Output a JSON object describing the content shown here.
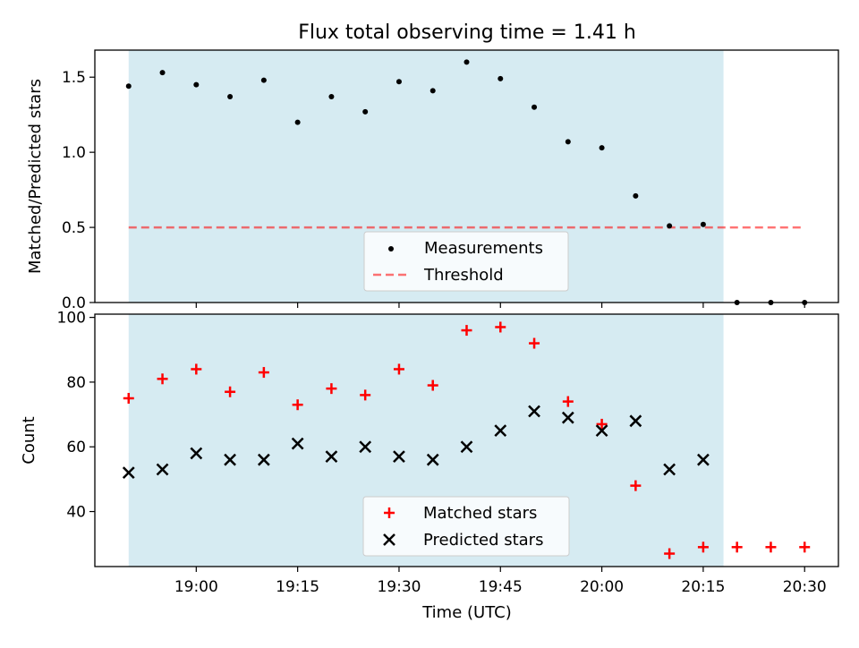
{
  "title": "Flux total observing time = 1.41 h",
  "chart_data": [
    {
      "type": "scatter",
      "ylabel": "Matched/Predicted stars",
      "ylim": [
        0,
        1.68
      ],
      "xlim": [
        "18:45",
        "20:35"
      ],
      "yticks": [
        0.0,
        0.5,
        1.0,
        1.5
      ],
      "ytick_labels": [
        "0.0",
        "0.5",
        "1.0",
        "1.5"
      ],
      "shaded_interval": [
        "18:50",
        "20:18"
      ],
      "shade_color": "#add8e6",
      "threshold": 0.5,
      "threshold_color": "#ff0000",
      "legend_position": "lower center",
      "legend": {
        "measurements": "Measurements",
        "threshold": "Threshold"
      },
      "series": [
        {
          "name": "Measurements",
          "marker": "dot",
          "color": "#000000",
          "x": [
            "18:50",
            "18:55",
            "19:00",
            "19:05",
            "19:10",
            "19:15",
            "19:20",
            "19:25",
            "19:30",
            "19:35",
            "19:40",
            "19:45",
            "19:50",
            "19:55",
            "20:00",
            "20:05",
            "20:10",
            "20:15",
            "20:20",
            "20:25",
            "20:30"
          ],
          "y": [
            1.44,
            1.53,
            1.45,
            1.37,
            1.48,
            1.2,
            1.37,
            1.27,
            1.47,
            1.41,
            1.6,
            1.49,
            1.3,
            1.07,
            1.03,
            0.71,
            0.51,
            0.52,
            0.0,
            0.0,
            0.0
          ]
        }
      ]
    },
    {
      "type": "scatter",
      "xlabel": "Time (UTC)",
      "ylabel": "Count",
      "ylim": [
        23,
        101
      ],
      "xlim": [
        "18:45",
        "20:35"
      ],
      "yticks": [
        40,
        60,
        80,
        100
      ],
      "ytick_labels": [
        "40",
        "60",
        "80",
        "100"
      ],
      "xticks": [
        "19:00",
        "19:15",
        "19:30",
        "19:45",
        "20:00",
        "20:15",
        "20:30"
      ],
      "xtick_labels": [
        "19:00",
        "19:15",
        "19:30",
        "19:45",
        "20:00",
        "20:15",
        "20:30"
      ],
      "shaded_interval": [
        "18:50",
        "20:18"
      ],
      "shade_color": "#add8e6",
      "legend_position": "lower center",
      "legend": {
        "matched": "Matched stars",
        "predicted": "Predicted stars"
      },
      "series": [
        {
          "name": "Matched stars",
          "marker": "plus",
          "color": "#ff0000",
          "x": [
            "18:50",
            "18:55",
            "19:00",
            "19:05",
            "19:10",
            "19:15",
            "19:20",
            "19:25",
            "19:30",
            "19:35",
            "19:40",
            "19:45",
            "19:50",
            "19:55",
            "20:00",
            "20:05",
            "20:10",
            "20:15",
            "20:20",
            "20:25",
            "20:30"
          ],
          "y": [
            75,
            81,
            84,
            77,
            83,
            73,
            78,
            76,
            84,
            79,
            96,
            97,
            92,
            74,
            67,
            48,
            27,
            29,
            29,
            29,
            29
          ]
        },
        {
          "name": "Predicted stars",
          "marker": "x",
          "color": "#000000",
          "x": [
            "18:50",
            "18:55",
            "19:00",
            "19:05",
            "19:10",
            "19:15",
            "19:20",
            "19:25",
            "19:30",
            "19:35",
            "19:40",
            "19:45",
            "19:50",
            "19:55",
            "20:00",
            "20:05",
            "20:10",
            "20:15"
          ],
          "y": [
            52,
            53,
            58,
            56,
            56,
            61,
            57,
            60,
            57,
            56,
            60,
            65,
            71,
            69,
            65,
            68,
            53,
            56
          ]
        }
      ]
    }
  ]
}
